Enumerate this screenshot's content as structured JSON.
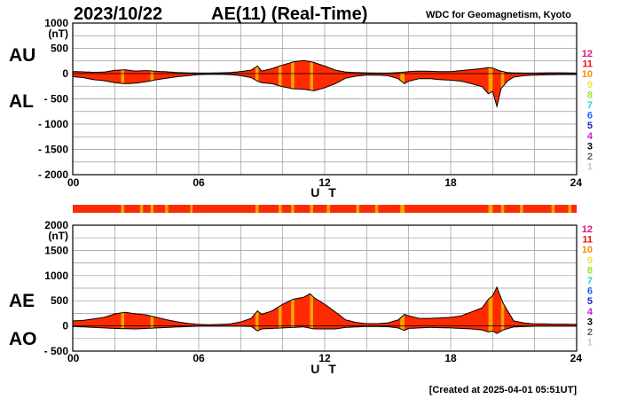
{
  "header": {
    "date": "2023/10/22",
    "title": "AE(11) (Real-Time)",
    "credit": "WDC for Geomagnetism, Kyoto"
  },
  "footer": {
    "created": "[Created at 2025-04-01 05:51UT]"
  },
  "station_scale": {
    "labels": [
      "12",
      "11",
      "10",
      "9",
      "8",
      "7",
      "6",
      "5",
      "4",
      "3",
      "2",
      "1"
    ],
    "colors": [
      "#e0107a",
      "#e81010",
      "#f09000",
      "#e8e840",
      "#90e830",
      "#20d8c8",
      "#2060ff",
      "#2020c0",
      "#c020e0",
      "#000000",
      "#606060",
      "#c8c8c8"
    ]
  },
  "colors": {
    "fill": "#ff2a00",
    "highlight": "#f7a500",
    "line": "#000000",
    "grid": "#999999"
  },
  "chart_data": [
    {
      "type": "area",
      "panel": "AU/AL",
      "left_labels": [
        "AU",
        "AL"
      ],
      "ylabel": "(nT)",
      "ylim": [
        -2000,
        1000
      ],
      "yticks": [
        1000,
        500,
        0,
        -500,
        -1000,
        -1500,
        -2000
      ],
      "xlim": [
        0,
        24
      ],
      "xticks": [
        "00",
        "06",
        "12",
        "18",
        "24"
      ],
      "xlabel": "U T",
      "series": [
        {
          "name": "AU",
          "x": [
            0,
            0.5,
            1,
            1.5,
            2,
            2.5,
            3,
            3.5,
            4,
            4.5,
            5,
            5.5,
            6,
            6.5,
            7,
            7.5,
            8,
            8.5,
            8.8,
            9,
            9.5,
            10,
            10.5,
            11,
            11.5,
            12,
            12.5,
            13,
            13.5,
            14,
            14.5,
            15,
            15.5,
            15.8,
            16,
            16.5,
            17,
            17.5,
            18,
            18.5,
            19,
            19.5,
            19.8,
            20,
            20.3,
            20.7,
            21,
            21.5,
            22,
            22.5,
            23,
            23.5,
            24
          ],
          "values": [
            40,
            35,
            25,
            30,
            65,
            75,
            50,
            60,
            45,
            35,
            20,
            15,
            10,
            10,
            15,
            20,
            40,
            70,
            150,
            50,
            100,
            170,
            230,
            260,
            220,
            150,
            70,
            30,
            20,
            15,
            10,
            10,
            20,
            30,
            40,
            50,
            45,
            40,
            40,
            60,
            80,
            100,
            120,
            110,
            60,
            20,
            15,
            10,
            10,
            15,
            15,
            15,
            10
          ]
        },
        {
          "name": "AL",
          "x": [
            0,
            0.5,
            1,
            1.5,
            2,
            2.5,
            3,
            3.5,
            4,
            4.5,
            5,
            5.5,
            6,
            6.5,
            7,
            7.5,
            8,
            8.5,
            8.8,
            9,
            9.5,
            10,
            10.5,
            11,
            11.5,
            12,
            12.5,
            13,
            13.5,
            14,
            14.5,
            15,
            15.5,
            15.8,
            16,
            16.5,
            17,
            17.5,
            18,
            18.5,
            19,
            19.5,
            19.8,
            20,
            20.2,
            20.4,
            20.7,
            21,
            21.5,
            22,
            22.5,
            23,
            23.5,
            24
          ],
          "values": [
            -60,
            -80,
            -120,
            -140,
            -180,
            -200,
            -190,
            -160,
            -120,
            -90,
            -60,
            -40,
            -20,
            -15,
            -15,
            -20,
            -40,
            -80,
            -150,
            -180,
            -200,
            -260,
            -300,
            -310,
            -340,
            -280,
            -200,
            -90,
            -50,
            -30,
            -30,
            -40,
            -100,
            -200,
            -150,
            -100,
            -100,
            -120,
            -130,
            -150,
            -200,
            -260,
            -400,
            -350,
            -650,
            -300,
            -150,
            -70,
            -40,
            -30,
            -25,
            -20,
            -20,
            -20
          ]
        }
      ]
    },
    {
      "type": "area",
      "panel": "AE/AO",
      "left_labels": [
        "AE",
        "AO"
      ],
      "ylabel": "(nT)",
      "ylim": [
        -500,
        2000
      ],
      "yticks": [
        2000,
        1500,
        1000,
        500,
        0,
        -500
      ],
      "xlim": [
        0,
        24
      ],
      "xticks": [
        "00",
        "06",
        "12",
        "18",
        "24"
      ],
      "xlabel": "U T",
      "series": [
        {
          "name": "AE",
          "x": [
            0,
            0.5,
            1,
            1.5,
            2,
            2.5,
            3,
            3.5,
            4,
            4.5,
            5,
            5.5,
            6,
            6.5,
            7,
            7.5,
            8,
            8.5,
            8.8,
            9,
            9.5,
            10,
            10.5,
            11,
            11.3,
            11.5,
            12,
            12.5,
            13,
            13.5,
            14,
            14.5,
            15,
            15.5,
            15.8,
            16,
            16.5,
            17,
            17.5,
            18,
            18.5,
            19,
            19.5,
            19.8,
            20,
            20.2,
            20.5,
            21,
            21.5,
            22,
            22.5,
            23,
            23.5,
            24
          ],
          "values": [
            100,
            110,
            140,
            170,
            240,
            270,
            240,
            220,
            170,
            120,
            80,
            50,
            30,
            25,
            30,
            40,
            80,
            150,
            300,
            230,
            300,
            430,
            530,
            570,
            640,
            560,
            430,
            280,
            120,
            70,
            45,
            45,
            60,
            120,
            230,
            200,
            150,
            150,
            160,
            170,
            200,
            280,
            360,
            530,
            600,
            770,
            450,
            100,
            60,
            40,
            40,
            35,
            35,
            30
          ]
        },
        {
          "name": "AO",
          "x": [
            0,
            1,
            2,
            3,
            4,
            5,
            6,
            7,
            8,
            8.5,
            8.8,
            9,
            9.5,
            10,
            10.5,
            11,
            11.5,
            12,
            12.5,
            13,
            14,
            15,
            15.5,
            15.8,
            16,
            17,
            18,
            19,
            19.5,
            19.8,
            20,
            20.2,
            20.5,
            21,
            22,
            23,
            24
          ],
          "values": [
            -10,
            -30,
            -50,
            -60,
            -40,
            -20,
            -5,
            -5,
            -5,
            -10,
            -100,
            -60,
            -50,
            -40,
            -30,
            -20,
            -60,
            -60,
            -60,
            -30,
            -10,
            -15,
            -40,
            -90,
            -50,
            -30,
            -40,
            -60,
            -80,
            -120,
            -100,
            -150,
            -80,
            -20,
            -5,
            -5,
            -5
          ]
        }
      ]
    }
  ],
  "quality_bar": {
    "highlight_hours": [
      [
        2.3,
        2.45
      ],
      [
        3.2,
        3.35
      ],
      [
        3.7,
        3.85
      ],
      [
        4.4,
        4.55
      ],
      [
        5.6,
        5.7
      ],
      [
        8.7,
        8.85
      ],
      [
        9.8,
        9.95
      ],
      [
        10.4,
        10.55
      ],
      [
        11.3,
        11.45
      ],
      [
        12.1,
        12.25
      ],
      [
        13.5,
        13.65
      ],
      [
        14.4,
        14.55
      ],
      [
        15.6,
        15.8
      ],
      [
        19.8,
        20.0
      ],
      [
        20.4,
        20.55
      ],
      [
        21.3,
        21.45
      ],
      [
        22.8,
        22.95
      ],
      [
        23.6,
        23.75
      ]
    ]
  },
  "highlight_bands": [
    [
      2.3,
      2.45
    ],
    [
      3.7,
      3.85
    ],
    [
      8.7,
      8.85
    ],
    [
      9.8,
      9.95
    ],
    [
      10.4,
      10.55
    ],
    [
      11.3,
      11.45
    ],
    [
      15.6,
      15.8
    ],
    [
      19.8,
      20.0
    ],
    [
      20.4,
      20.55
    ]
  ]
}
